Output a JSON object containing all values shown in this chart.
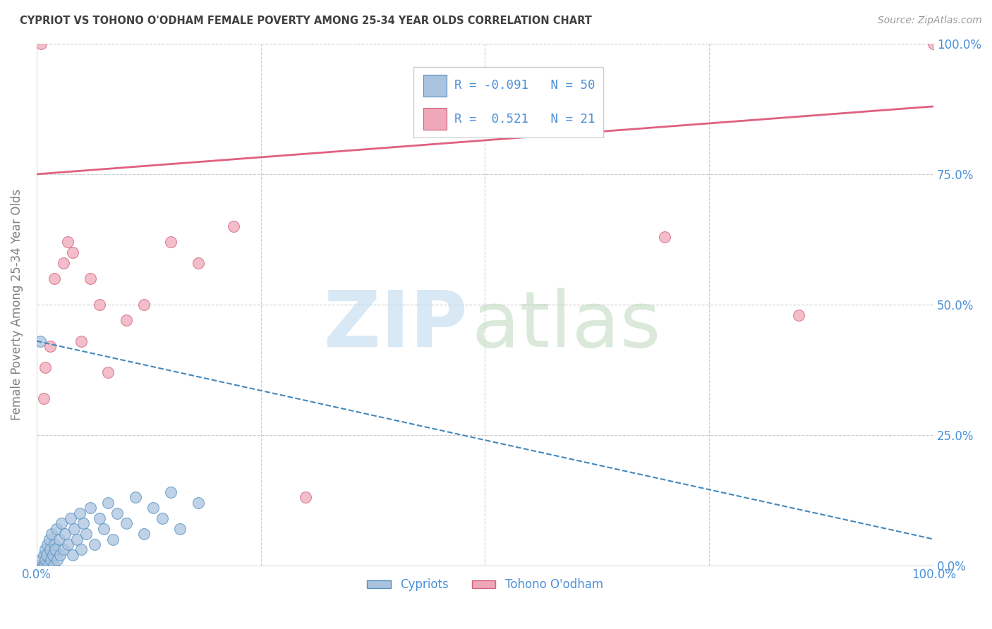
{
  "title": "CYPRIOT VS TOHONO O'ODHAM FEMALE POVERTY AMONG 25-34 YEAR OLDS CORRELATION CHART",
  "source": "Source: ZipAtlas.com",
  "ylabel": "Female Poverty Among 25-34 Year Olds",
  "xlim": [
    0,
    100
  ],
  "ylim": [
    0,
    100
  ],
  "R_blue": -0.091,
  "N_blue": 50,
  "R_pink": 0.521,
  "N_pink": 21,
  "blue_color": "#aac4e0",
  "pink_color": "#f0a8b8",
  "blue_edge_color": "#5590c0",
  "pink_edge_color": "#d06080",
  "blue_line_color": "#4488bb",
  "pink_line_color": "#e06080",
  "blue_trend": [
    0,
    43,
    100,
    5
  ],
  "pink_trend": [
    0,
    75,
    100,
    88
  ],
  "blue_x": [
    0.3,
    0.5,
    0.7,
    0.8,
    0.9,
    1.0,
    1.0,
    1.1,
    1.2,
    1.3,
    1.4,
    1.5,
    1.6,
    1.7,
    1.8,
    1.9,
    2.0,
    2.1,
    2.2,
    2.3,
    2.5,
    2.6,
    2.8,
    3.0,
    3.2,
    3.5,
    3.8,
    4.0,
    4.2,
    4.5,
    4.8,
    5.0,
    5.2,
    5.5,
    6.0,
    6.5,
    7.0,
    7.5,
    8.0,
    8.5,
    9.0,
    10.0,
    11.0,
    12.0,
    13.0,
    14.0,
    15.0,
    16.0,
    18.0,
    0.4
  ],
  "blue_y": [
    0,
    1,
    0,
    2,
    0,
    1,
    3,
    2,
    4,
    0,
    5,
    3,
    1,
    6,
    2,
    0,
    4,
    3,
    7,
    1,
    5,
    2,
    8,
    3,
    6,
    4,
    9,
    2,
    7,
    5,
    10,
    3,
    8,
    6,
    11,
    4,
    9,
    7,
    12,
    5,
    10,
    8,
    13,
    6,
    11,
    9,
    14,
    7,
    12,
    43
  ],
  "pink_x": [
    0.5,
    1.0,
    2.0,
    3.0,
    3.5,
    4.0,
    5.0,
    6.0,
    7.0,
    8.0,
    10.0,
    12.0,
    15.0,
    18.0,
    22.0,
    70.0,
    85.0,
    100.0,
    1.5,
    0.8,
    30.0
  ],
  "pink_y": [
    100,
    38,
    55,
    58,
    62,
    60,
    43,
    55,
    50,
    37,
    47,
    50,
    62,
    58,
    65,
    63,
    48,
    100,
    42,
    32,
    13
  ],
  "background_color": "#ffffff",
  "grid_color": "#cccccc",
  "title_color": "#404040",
  "axis_label_color": "#808080",
  "tick_label_color": "#4a90d9"
}
